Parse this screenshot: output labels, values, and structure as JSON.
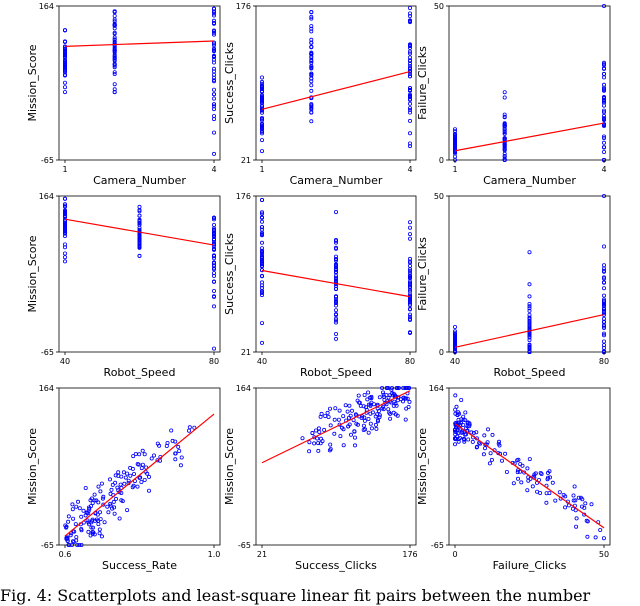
{
  "chart_data": [
    {
      "type": "scatter",
      "xlabel": "Camera_Number",
      "ylabel": "Mission_Score",
      "xlim": [
        1,
        4
      ],
      "ylim": [
        -65,
        164
      ],
      "xticks": [
        "1",
        "4"
      ],
      "yticks": [
        "164",
        "-65"
      ],
      "xcat": [
        1,
        2,
        4
      ],
      "ystats": [
        [
          128,
          36,
          84
        ],
        [
          156,
          36,
          100
        ],
        [
          160,
          -56,
          88
        ]
      ],
      "fit": [
        [
          1,
          104
        ],
        [
          4,
          112
        ]
      ]
    },
    {
      "type": "scatter",
      "xlabel": "Camera_Number",
      "ylabel": "Success_Clicks",
      "xlim": [
        1,
        4
      ],
      "ylim": [
        21,
        176
      ],
      "xticks": [
        "1",
        "4"
      ],
      "yticks": [
        "176",
        "21"
      ],
      "xcat": [
        1,
        2,
        4
      ],
      "ystats": [
        [
          104,
          30,
          72
        ],
        [
          170,
          60,
          118
        ],
        [
          174,
          35,
          106
        ]
      ],
      "fit": [
        [
          1,
          72
        ],
        [
          4,
          110
        ]
      ]
    },
    {
      "type": "scatter",
      "xlabel": "Camera_Number",
      "ylabel": "Failure_Clicks",
      "xlim": [
        1,
        4
      ],
      "ylim": [
        0,
        50
      ],
      "xticks": [
        "1",
        "4"
      ],
      "yticks": [
        "50",
        "0"
      ],
      "xcat": [
        1,
        2,
        4
      ],
      "ystats": [
        [
          10,
          0,
          5
        ],
        [
          22,
          0,
          8
        ],
        [
          50,
          0,
          15
        ]
      ],
      "fit": [
        [
          1,
          3
        ],
        [
          4,
          12
        ]
      ]
    },
    {
      "type": "scatter",
      "xlabel": "Robot_Speed",
      "ylabel": "Mission_Score",
      "xlim": [
        40,
        80
      ],
      "ylim": [
        -65,
        164
      ],
      "xticks": [
        "40",
        "80"
      ],
      "yticks": [
        "164",
        "-65"
      ],
      "xcat": [
        40,
        60,
        80
      ],
      "ystats": [
        [
          160,
          68,
          120
        ],
        [
          148,
          76,
          110
        ],
        [
          132,
          -60,
          90
        ]
      ],
      "fit": [
        [
          40,
          130
        ],
        [
          80,
          92
        ]
      ]
    },
    {
      "type": "scatter",
      "xlabel": "Robot_Speed",
      "ylabel": "Success_Clicks",
      "xlim": [
        40,
        80
      ],
      "ylim": [
        21,
        176
      ],
      "xticks": [
        "40",
        "80"
      ],
      "yticks": [
        "176",
        "21"
      ],
      "xcat": [
        40,
        60,
        80
      ],
      "ystats": [
        [
          172,
          30,
          110
        ],
        [
          160,
          34,
          96
        ],
        [
          150,
          40,
          82
        ]
      ],
      "fit": [
        [
          40,
          102
        ],
        [
          80,
          76
        ]
      ]
    },
    {
      "type": "scatter",
      "xlabel": "Robot_Speed",
      "ylabel": "Failure_Clicks",
      "xlim": [
        40,
        80
      ],
      "ylim": [
        0,
        50
      ],
      "xticks": [
        "40",
        "80"
      ],
      "yticks": [
        "50",
        "0"
      ],
      "xcat": [
        40,
        60,
        80
      ],
      "ystats": [
        [
          8,
          0,
          3
        ],
        [
          32,
          0,
          7
        ],
        [
          50,
          0,
          12
        ]
      ],
      "fit": [
        [
          40,
          1.5
        ],
        [
          80,
          12
        ]
      ]
    },
    {
      "type": "scatter",
      "xlabel": "Success_Rate",
      "ylabel": "Mission_Score",
      "xlim": [
        0.6,
        1.0
      ],
      "ylim": [
        -65,
        164
      ],
      "xticks": [
        "0.6",
        "1.0"
      ],
      "yticks": [
        "164",
        "-65"
      ],
      "fit": [
        [
          0.6,
          -52
        ],
        [
          1.0,
          126
        ]
      ],
      "noise": 34
    },
    {
      "type": "scatter",
      "xlabel": "Success_Clicks",
      "ylabel": "Mission_Score",
      "xlim": [
        21,
        176
      ],
      "ylim": [
        -65,
        164
      ],
      "xticks": [
        "21",
        "176"
      ],
      "yticks": [
        "164",
        "-65"
      ],
      "fit": [
        [
          21,
          55
        ],
        [
          176,
          160
        ]
      ],
      "noise": 30
    },
    {
      "type": "scatter",
      "xlabel": "Failure_Clicks",
      "ylabel": "Mission_Score",
      "xlim": [
        0,
        50
      ],
      "ylim": [
        -65,
        164
      ],
      "xticks": [
        "0",
        "50"
      ],
      "yticks": [
        "164",
        "-65"
      ],
      "fit": [
        [
          0,
          112
        ],
        [
          50,
          -40
        ]
      ],
      "noise": 28
    }
  ],
  "colors": {
    "points": "#0000ff",
    "fit": "#ff0000",
    "axis": "#000000"
  },
  "caption": "Fig. 4: Scatterplots and least-square linear fit pairs between the number"
}
